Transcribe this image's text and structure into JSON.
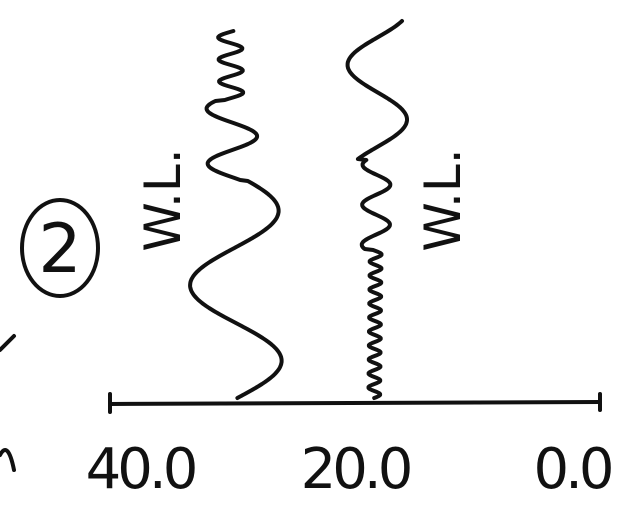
{
  "marker": "2",
  "axis": {
    "labels": [
      "40.0",
      "20.0",
      "0.0"
    ]
  },
  "waves": [
    {
      "label": "W.L."
    },
    {
      "label": "W.L."
    }
  ]
}
